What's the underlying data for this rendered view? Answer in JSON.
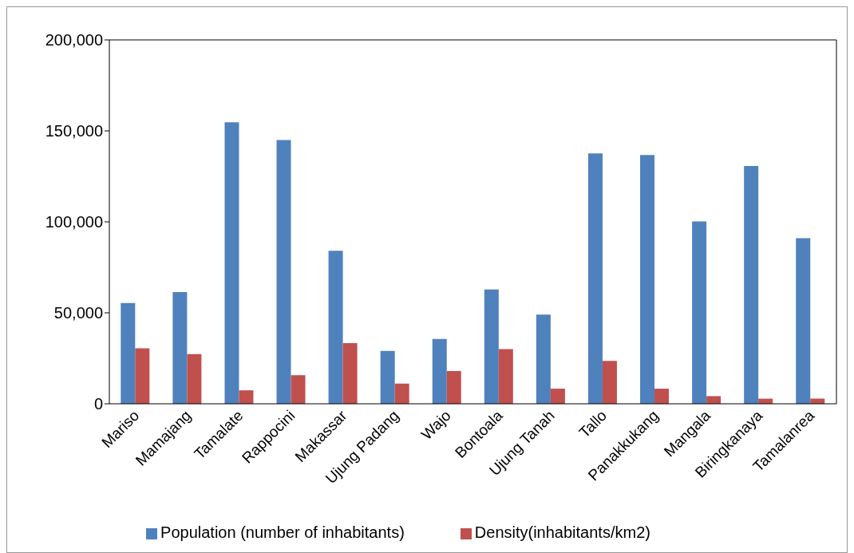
{
  "chart_data": {
    "type": "bar",
    "categories": [
      "Mariso",
      "Mamajang",
      "Tamalate",
      "Rappocini",
      "Makassar",
      "Ujung Padang",
      "Wajo",
      "Bontoala",
      "Ujung Tanah",
      "Tallo",
      "Panakkukang",
      "Mangala",
      "Biringkanaya",
      "Tamalanrea"
    ],
    "series": [
      {
        "name": "Population (number of inhabitants)",
        "color": "#4f81bd",
        "values": [
          55400,
          61400,
          154700,
          145000,
          84100,
          29100,
          35600,
          62800,
          49000,
          137600,
          136700,
          100200,
          130700,
          91000
        ]
      },
      {
        "name": "Density(inhabitants/km2)",
        "color": "#c0504d",
        "values": [
          30500,
          27300,
          7400,
          15700,
          33300,
          11100,
          18000,
          30000,
          8300,
          23600,
          8300,
          4200,
          2800,
          2800
        ]
      }
    ],
    "ylim": [
      0,
      200000
    ],
    "yticks": [
      0,
      {
        "value": 50000,
        "label": "50,000"
      },
      {
        "value": 100000,
        "label": "100,000"
      },
      {
        "value": 150000,
        "label": "150,000"
      },
      {
        "value": 200000,
        "label": "200,000"
      }
    ],
    "legend": "bottom"
  }
}
